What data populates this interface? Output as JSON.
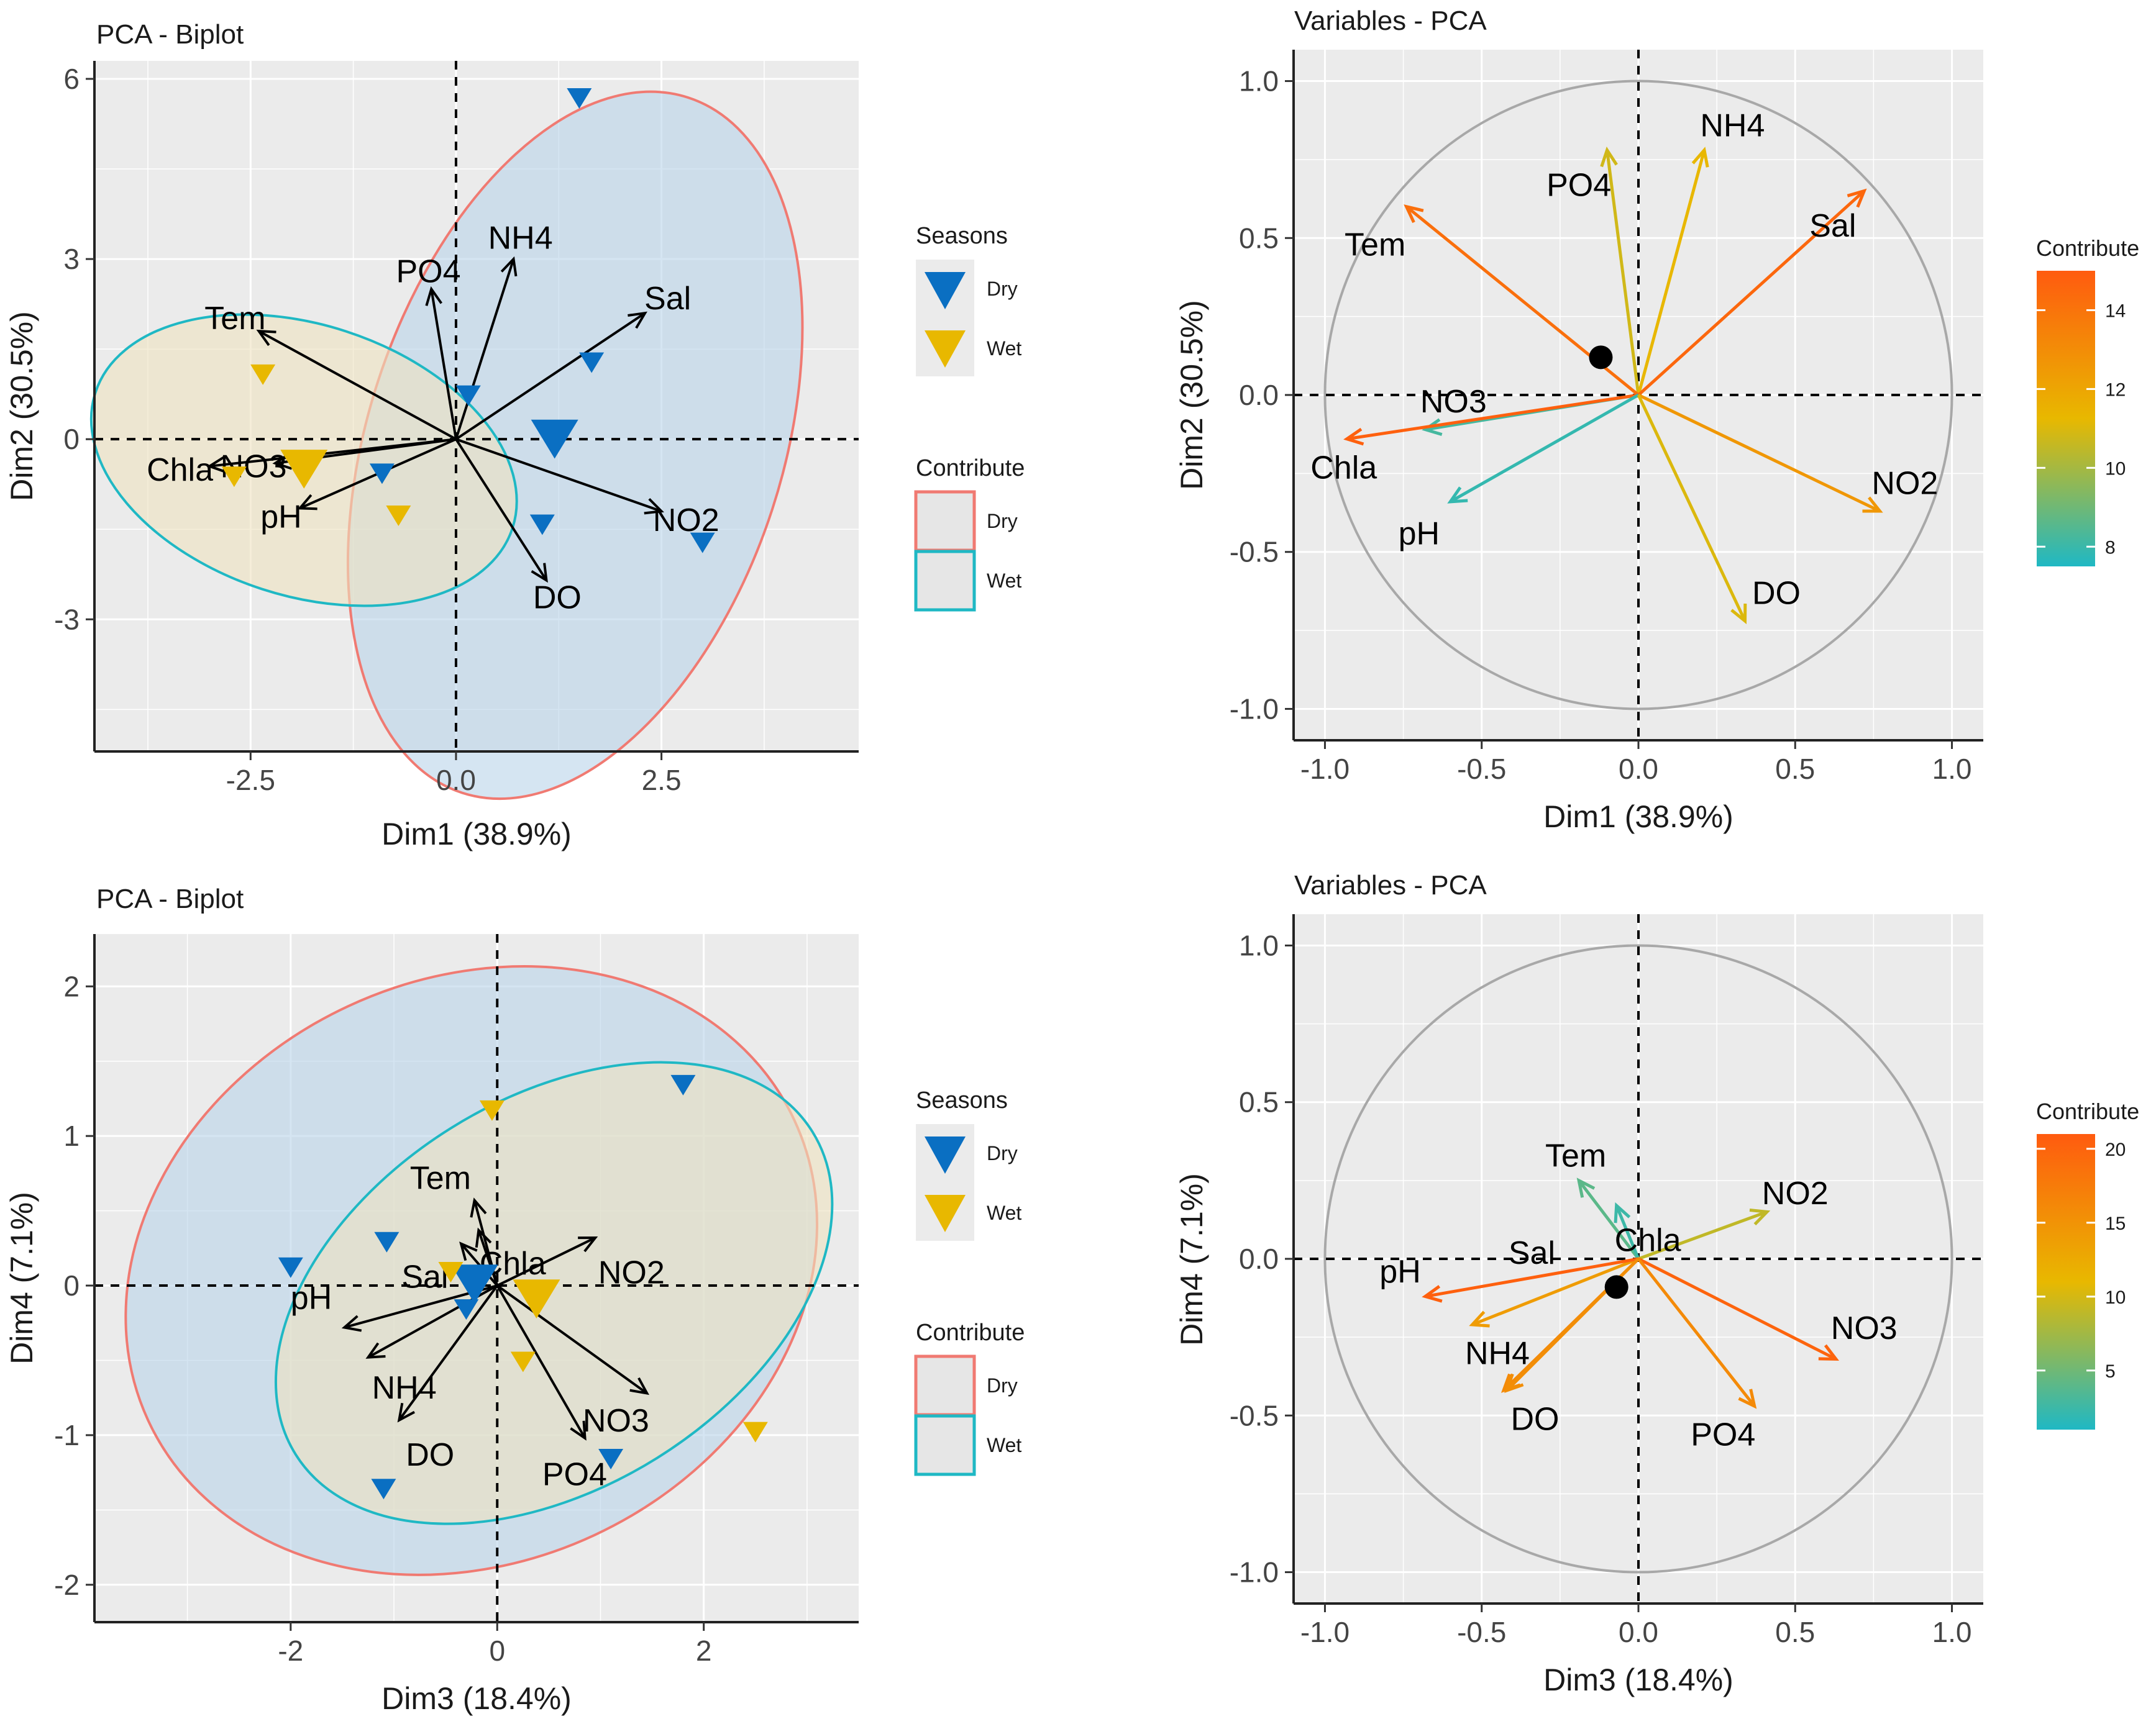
{
  "colors": {
    "dry": "#0a6fc2",
    "wet": "#e8b800",
    "dry_ellipse_line": "#f07a72",
    "wet_ellipse_line": "#1fb8c4",
    "dry_ellipse_fill": "#b9d3ea",
    "wet_ellipse_fill": "#efe3bf",
    "panel_bg": "#ebebeb",
    "circle": "#a8a8a8"
  },
  "chart_data": [
    {
      "type": "scatter",
      "kind": "biplot",
      "title": "PCA - Biplot",
      "xlabel": "Dim1 (38.9%)",
      "ylabel": "Dim2 (30.5%)",
      "xlim": [
        -4.4,
        4.9
      ],
      "ylim": [
        -5.2,
        6.3
      ],
      "xticks": [
        -2.5,
        0.0,
        2.5
      ],
      "xtick_labels": [
        "-2.5",
        "0.0",
        "2.5"
      ],
      "yticks": [
        -3,
        0,
        3,
        6
      ],
      "ytick_labels": [
        "-3",
        "0",
        "3",
        "6"
      ],
      "legend": {
        "seasons_title": "Seasons",
        "contribute_title": "Contribute",
        "items": [
          "Dry",
          "Wet"
        ]
      },
      "points": [
        {
          "group": "Dry",
          "x": 1.5,
          "y": 5.7
        },
        {
          "group": "Dry",
          "x": 1.65,
          "y": 1.3
        },
        {
          "group": "Dry",
          "x": 0.15,
          "y": 0.75
        },
        {
          "group": "Dry",
          "x": 1.2,
          "y": 0.05,
          "mean": true
        },
        {
          "group": "Dry",
          "x": -0.9,
          "y": -0.55
        },
        {
          "group": "Dry",
          "x": 1.05,
          "y": -1.4
        },
        {
          "group": "Dry",
          "x": 3.0,
          "y": -1.7
        },
        {
          "group": "Wet",
          "x": -2.35,
          "y": 1.1
        },
        {
          "group": "Wet",
          "x": -1.85,
          "y": -0.45,
          "mean": true
        },
        {
          "group": "Wet",
          "x": -2.7,
          "y": -0.6
        },
        {
          "group": "Wet",
          "x": -0.7,
          "y": -1.25
        }
      ],
      "ellipses": [
        {
          "group": "Dry",
          "cx": 1.45,
          "cy": -0.1,
          "rx": 4.45,
          "ry": 3.45,
          "angle": -72
        },
        {
          "group": "Wet",
          "cx": -1.85,
          "cy": -0.35,
          "rx": 1.65,
          "ry": 3.65,
          "angle": -72
        }
      ],
      "vectors": [
        {
          "label": "PO4",
          "x": -0.3,
          "y": 2.5
        },
        {
          "label": "NH4",
          "x": 0.7,
          "y": 3.0
        },
        {
          "label": "Sal",
          "x": 2.3,
          "y": 2.1
        },
        {
          "label": "Tem",
          "x": -2.4,
          "y": 1.8
        },
        {
          "label": "NO3",
          "x": -2.2,
          "y": -0.4
        },
        {
          "label": "Chla",
          "x": -3.0,
          "y": -0.45
        },
        {
          "label": "pH",
          "x": -1.9,
          "y": -1.15
        },
        {
          "label": "NO2",
          "x": 2.5,
          "y": -1.2
        },
        {
          "label": "DO",
          "x": 1.1,
          "y": -2.35
        }
      ]
    },
    {
      "type": "line",
      "kind": "variables",
      "title": "Variables - PCA",
      "xlabel": "Dim1 (38.9%)",
      "ylabel": "Dim2 (30.5%)",
      "xlim": [
        -1.1,
        1.1
      ],
      "ylim": [
        -1.1,
        1.1
      ],
      "xticks": [
        -1.0,
        -0.5,
        0.0,
        0.5,
        1.0
      ],
      "xtick_labels": [
        "-1.0",
        "-0.5",
        "0.0",
        "0.5",
        "1.0"
      ],
      "yticks": [
        -1.0,
        -0.5,
        0.0,
        0.5,
        1.0
      ],
      "ytick_labels": [
        "-1.0",
        "-0.5",
        "0.0",
        "0.5",
        "1.0"
      ],
      "colorbar": {
        "title": "Contribute",
        "min": 7.5,
        "max": 15,
        "ticks": [
          8,
          10,
          12,
          14
        ],
        "tick_labels": [
          "8",
          "10",
          "12",
          "14"
        ]
      },
      "mean_point": {
        "x": -0.12,
        "y": 0.12
      },
      "vectors": [
        {
          "label": "PO4",
          "x": -0.1,
          "y": 0.78,
          "contrib": 10.8
        },
        {
          "label": "NH4",
          "x": 0.21,
          "y": 0.78,
          "contrib": 11.3
        },
        {
          "label": "Sal",
          "x": 0.72,
          "y": 0.65,
          "contrib": 14.5
        },
        {
          "label": "Tem",
          "x": -0.74,
          "y": 0.6,
          "contrib": 14.2
        },
        {
          "label": "NO3",
          "x": -0.68,
          "y": -0.11,
          "contrib": 8.2
        },
        {
          "label": "Chla",
          "x": -0.93,
          "y": -0.14,
          "contrib": 14.8
        },
        {
          "label": "pH",
          "x": -0.6,
          "y": -0.34,
          "contrib": 7.9
        },
        {
          "label": "NO2",
          "x": 0.77,
          "y": -0.37,
          "contrib": 12.6
        },
        {
          "label": "DO",
          "x": 0.34,
          "y": -0.72,
          "contrib": 11.0
        }
      ],
      "label_pos": {
        "PO4": [
          -0.19,
          0.67
        ],
        "NH4": [
          0.3,
          0.86
        ],
        "Sal": [
          0.62,
          0.54
        ],
        "Tem": [
          -0.84,
          0.48
        ],
        "NO3": [
          -0.59,
          -0.02
        ],
        "Chla": [
          -0.94,
          -0.23
        ],
        "pH": [
          -0.7,
          -0.44
        ],
        "NO2": [
          0.85,
          -0.28
        ],
        "DO": [
          0.44,
          -0.63
        ]
      }
    },
    {
      "type": "scatter",
      "kind": "biplot",
      "title": "PCA - Biplot",
      "xlabel": "Dim3 (18.4%)",
      "ylabel": "Dim4 (7.1%)",
      "xlim": [
        -3.9,
        3.5
      ],
      "ylim": [
        -2.25,
        2.35
      ],
      "xticks": [
        -2,
        0,
        2
      ],
      "xtick_labels": [
        "-2",
        "0",
        "2"
      ],
      "yticks": [
        -2,
        -1,
        0,
        1,
        2
      ],
      "ytick_labels": [
        "-2",
        "-1",
        "0",
        "1",
        "2"
      ],
      "legend": {
        "seasons_title": "Seasons",
        "contribute_title": "Contribute",
        "items": [
          "Dry",
          "Wet"
        ]
      },
      "points": [
        {
          "group": "Dry",
          "x": 1.8,
          "y": 1.35
        },
        {
          "group": "Dry",
          "x": -2.0,
          "y": 0.13
        },
        {
          "group": "Dry",
          "x": -1.07,
          "y": 0.3
        },
        {
          "group": "Dry",
          "x": -0.22,
          "y": 0.03,
          "mean": true
        },
        {
          "group": "Dry",
          "x": -0.3,
          "y": -0.15
        },
        {
          "group": "Dry",
          "x": 1.1,
          "y": -1.15
        },
        {
          "group": "Dry",
          "x": -1.1,
          "y": -1.35
        },
        {
          "group": "Wet",
          "x": -0.05,
          "y": 1.18
        },
        {
          "group": "Wet",
          "x": -0.45,
          "y": 0.1
        },
        {
          "group": "Wet",
          "x": 0.38,
          "y": -0.07,
          "mean": true
        },
        {
          "group": "Wet",
          "x": 0.25,
          "y": -0.5
        },
        {
          "group": "Wet",
          "x": 2.5,
          "y": -0.97
        }
      ],
      "ellipses": [
        {
          "group": "Dry",
          "cx": -0.25,
          "cy": 0.1,
          "rx": 3.45,
          "ry": 1.95,
          "angle": -25
        },
        {
          "group": "Wet",
          "cx": 0.55,
          "cy": -0.05,
          "rx": 2.95,
          "ry": 1.3,
          "angle": -32
        }
      ],
      "vectors": [
        {
          "label": "Tem",
          "x": -0.22,
          "y": 0.57
        },
        {
          "label": "Chla",
          "x": -0.35,
          "y": 0.28
        },
        {
          "label": "Sal",
          "x": -0.18,
          "y": 0.37
        },
        {
          "label": "NO2",
          "x": 0.95,
          "y": 0.32
        },
        {
          "label": "pH",
          "x": -1.48,
          "y": -0.28
        },
        {
          "label": "NH4",
          "x": -1.25,
          "y": -0.48
        },
        {
          "label": "DO",
          "x": -0.95,
          "y": -0.9
        },
        {
          "label": "NO3",
          "x": 1.45,
          "y": -0.72
        },
        {
          "label": "PO4",
          "x": 0.85,
          "y": -1.02
        }
      ],
      "label_pos": {
        "Tem": [
          -0.55,
          0.72
        ],
        "Chla": [
          0.15,
          0.15
        ],
        "Sal": [
          -0.7,
          0.06
        ],
        "NO2": [
          1.3,
          0.09
        ],
        "pH": [
          -1.8,
          -0.08
        ],
        "NH4": [
          -0.9,
          -0.68
        ],
        "DO": [
          -0.65,
          -1.13
        ],
        "NO3": [
          1.15,
          -0.9
        ],
        "PO4": [
          0.75,
          -1.26
        ]
      }
    },
    {
      "type": "line",
      "kind": "variables",
      "title": "Variables - PCA",
      "xlabel": "Dim3 (18.4%)",
      "ylabel": "Dim4 (7.1%)",
      "xlim": [
        -1.1,
        1.1
      ],
      "ylim": [
        -1.1,
        1.1
      ],
      "xticks": [
        -1.0,
        -0.5,
        0.0,
        0.5,
        1.0
      ],
      "xtick_labels": [
        "-1.0",
        "-0.5",
        "0.0",
        "0.5",
        "1.0"
      ],
      "yticks": [
        -1.0,
        -0.5,
        0.0,
        0.5,
        1.0
      ],
      "ytick_labels": [
        "-1.0",
        "-0.5",
        "0.0",
        "0.5",
        "1.0"
      ],
      "colorbar": {
        "title": "Contribute",
        "min": 1,
        "max": 21,
        "ticks": [
          5,
          10,
          15,
          20
        ],
        "tick_labels": [
          "5",
          "10",
          "15",
          "20"
        ]
      },
      "mean_point": {
        "x": -0.07,
        "y": -0.09
      },
      "vectors": [
        {
          "label": "Tem",
          "x": -0.19,
          "y": 0.25,
          "contrib": 4.0
        },
        {
          "label": "Chla",
          "x": -0.07,
          "y": 0.17,
          "contrib": 2.5
        },
        {
          "label": "Sal",
          "x": -0.53,
          "y": -0.21,
          "contrib": 14.0
        },
        {
          "label": "NO2",
          "x": 0.41,
          "y": 0.15,
          "contrib": 9.0
        },
        {
          "label": "pH",
          "x": -0.68,
          "y": -0.12,
          "contrib": 20.5
        },
        {
          "label": "NH4",
          "x": -0.43,
          "y": -0.42,
          "contrib": 16.0
        },
        {
          "label": "NO3",
          "x": 0.63,
          "y": -0.32,
          "contrib": 20.0
        },
        {
          "label": "PO4",
          "x": 0.37,
          "y": -0.47,
          "contrib": 16.0
        }
      ],
      "label_pos": {
        "Tem": [
          -0.2,
          0.33
        ],
        "Chla": [
          0.03,
          0.06
        ],
        "Sal": [
          -0.34,
          0.02
        ],
        "NO2": [
          0.5,
          0.21
        ],
        "pH": [
          -0.76,
          -0.04
        ],
        "NH4": [
          -0.45,
          -0.3
        ],
        "DO": [
          -0.33,
          -0.51
        ],
        "NO3": [
          0.72,
          -0.22
        ],
        "PO4": [
          0.27,
          -0.56
        ]
      },
      "extra_vectors": [
        {
          "label": "DO",
          "x": -0.42,
          "y": -0.42,
          "contrib": 15.5
        }
      ]
    }
  ]
}
